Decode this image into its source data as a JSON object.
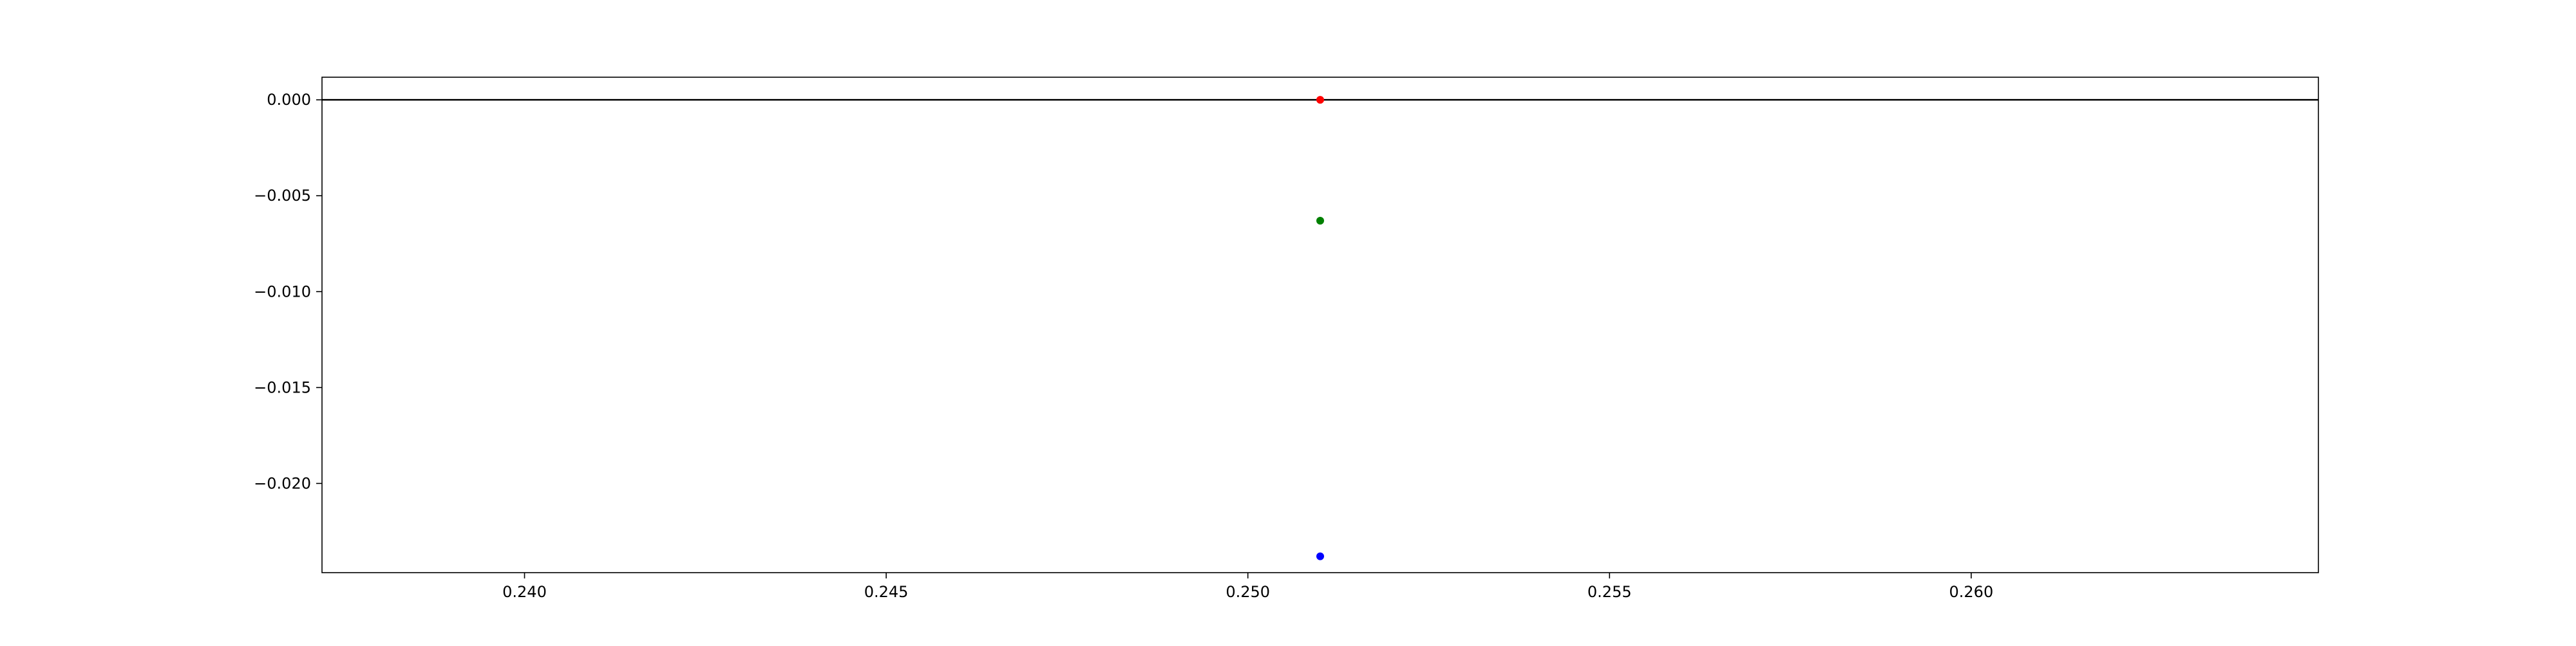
{
  "chart_data": {
    "type": "scatter",
    "title": "",
    "xlabel": "",
    "ylabel": "",
    "xlim": [
      0.2372,
      0.2648
    ],
    "ylim": [
      -0.02465,
      0.00118
    ],
    "x_ticks": [
      0.24,
      0.245,
      0.25,
      0.255,
      0.26
    ],
    "x_tick_labels": [
      "0.240",
      "0.245",
      "0.250",
      "0.255",
      "0.260"
    ],
    "y_ticks": [
      0.0,
      -0.005,
      -0.01,
      -0.015,
      -0.02
    ],
    "y_tick_labels": [
      "0.000",
      "−0.005",
      "−0.010",
      "−0.015",
      "−0.020"
    ],
    "hline": {
      "y": 0.0,
      "color": "#000000"
    },
    "grid": false,
    "legend": false,
    "points": [
      {
        "x": 0.251,
        "y": 0.0,
        "color": "#ff0000"
      },
      {
        "x": 0.251,
        "y": -0.0063,
        "color": "#008000"
      },
      {
        "x": 0.251,
        "y": -0.0238,
        "color": "#0000ff"
      }
    ]
  }
}
